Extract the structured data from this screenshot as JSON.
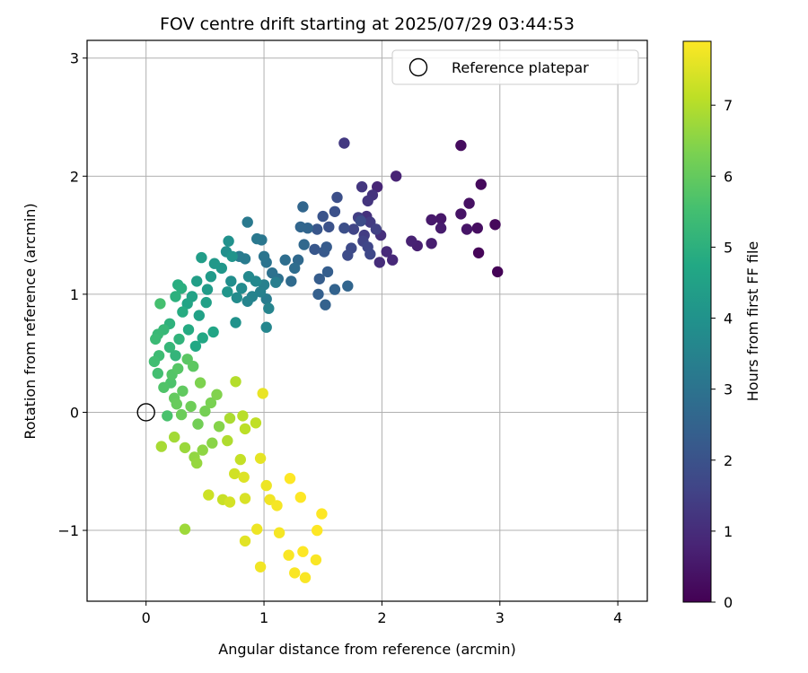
{
  "chart_data": {
    "type": "scatter",
    "title": "FOV centre drift starting at 2025/07/29 03:44:53",
    "xlabel": "Angular distance from reference (arcmin)",
    "ylabel": "Rotation from reference (arcmin)",
    "xlim": [
      -0.5,
      4.25
    ],
    "ylim": [
      -1.6,
      3.15
    ],
    "xticks": [
      0,
      1,
      2,
      3,
      4
    ],
    "xtick_labels": [
      "0",
      "1",
      "2",
      "3",
      "4"
    ],
    "yticks": [
      -1,
      0,
      1,
      2,
      3
    ],
    "ytick_labels": [
      "−1",
      "0",
      "1",
      "2",
      "3"
    ],
    "grid": true,
    "legend": {
      "placement": "top-right",
      "entries": [
        "Reference platepar"
      ]
    },
    "reference_point": {
      "x": 0,
      "y": 0
    },
    "colorbar": {
      "label": "Hours from first FF file",
      "colormap": "viridis",
      "range": [
        0,
        7.9
      ],
      "ticks": [
        0,
        1,
        2,
        3,
        4,
        5,
        6,
        7
      ],
      "tick_labels": [
        "0",
        "1",
        "2",
        "3",
        "4",
        "5",
        "6",
        "7"
      ]
    },
    "series": [
      {
        "color_by": "hours",
        "points": [
          [
            2.98,
            1.19,
            0.05
          ],
          [
            2.82,
            1.35,
            0.1
          ],
          [
            2.96,
            1.59,
            0.15
          ],
          [
            2.84,
            1.93,
            0.2
          ],
          [
            2.67,
            2.26,
            0.25
          ],
          [
            2.81,
            1.56,
            0.3
          ],
          [
            2.74,
            1.77,
            0.35
          ],
          [
            2.67,
            1.68,
            0.4
          ],
          [
            2.72,
            1.55,
            0.45
          ],
          [
            2.5,
            1.64,
            0.5
          ],
          [
            2.42,
            1.63,
            0.55
          ],
          [
            2.5,
            1.56,
            0.6
          ],
          [
            2.42,
            1.43,
            0.65
          ],
          [
            2.3,
            1.41,
            0.7
          ],
          [
            2.25,
            1.45,
            0.75
          ],
          [
            2.12,
            2.0,
            0.8
          ],
          [
            1.96,
            1.91,
            0.85
          ],
          [
            2.09,
            1.29,
            0.9
          ],
          [
            2.04,
            1.36,
            0.95
          ],
          [
            1.98,
            1.27,
            1.0
          ],
          [
            1.99,
            1.5,
            1.05
          ],
          [
            1.87,
            1.66,
            1.1
          ],
          [
            1.92,
            1.84,
            1.15
          ],
          [
            1.88,
            1.79,
            1.2
          ],
          [
            1.83,
            1.91,
            1.25
          ],
          [
            1.68,
            2.28,
            1.3
          ],
          [
            1.9,
            1.61,
            1.35
          ],
          [
            1.85,
            1.5,
            1.4
          ],
          [
            1.8,
            1.65,
            1.45
          ],
          [
            1.95,
            1.55,
            1.5
          ],
          [
            1.84,
            1.45,
            1.55
          ],
          [
            1.76,
            1.55,
            1.6
          ],
          [
            1.88,
            1.4,
            1.65
          ],
          [
            1.9,
            1.34,
            1.7
          ],
          [
            1.74,
            1.39,
            1.75
          ],
          [
            1.71,
            1.33,
            1.8
          ],
          [
            1.82,
            1.62,
            1.85
          ],
          [
            1.68,
            1.56,
            1.9
          ],
          [
            1.6,
            1.7,
            1.95
          ],
          [
            1.62,
            1.82,
            1.9
          ],
          [
            1.55,
            1.57,
            2.0
          ],
          [
            1.5,
            1.66,
            2.05
          ],
          [
            1.45,
            1.55,
            2.1
          ],
          [
            1.43,
            1.38,
            2.15
          ],
          [
            1.51,
            1.36,
            2.2
          ],
          [
            1.53,
            1.4,
            2.25
          ],
          [
            1.47,
            1.13,
            2.3
          ],
          [
            1.54,
            1.19,
            2.35
          ],
          [
            1.46,
            1.0,
            2.4
          ],
          [
            1.52,
            0.91,
            2.45
          ],
          [
            1.6,
            1.04,
            2.5
          ],
          [
            1.71,
            1.07,
            2.55
          ],
          [
            1.37,
            1.56,
            2.55
          ],
          [
            1.31,
            1.57,
            2.6
          ],
          [
            1.33,
            1.74,
            2.6
          ],
          [
            1.34,
            1.42,
            2.65
          ],
          [
            1.29,
            1.29,
            2.7
          ],
          [
            1.23,
            1.11,
            2.75
          ],
          [
            1.26,
            1.22,
            2.8
          ],
          [
            1.18,
            1.29,
            2.85
          ],
          [
            1.12,
            1.13,
            2.9
          ],
          [
            1.07,
            1.18,
            2.95
          ],
          [
            1.02,
            1.27,
            3.0
          ],
          [
            1.0,
            1.32,
            3.05
          ],
          [
            0.98,
            1.46,
            3.1
          ],
          [
            0.94,
            1.47,
            3.15
          ],
          [
            0.86,
            1.61,
            3.2
          ],
          [
            0.84,
            1.3,
            3.25
          ],
          [
            0.79,
            1.32,
            3.25
          ],
          [
            1.02,
            0.96,
            3.3
          ],
          [
            1.1,
            1.1,
            3.35
          ],
          [
            1.0,
            1.08,
            3.4
          ],
          [
            0.97,
            1.02,
            3.45
          ],
          [
            0.9,
            0.98,
            3.5
          ],
          [
            0.86,
            0.94,
            3.55
          ],
          [
            1.04,
            0.88,
            3.55
          ],
          [
            1.02,
            0.72,
            3.6
          ],
          [
            0.93,
            1.11,
            3.65
          ],
          [
            0.87,
            1.15,
            3.7
          ],
          [
            0.81,
            1.05,
            3.75
          ],
          [
            0.77,
            0.97,
            3.8
          ],
          [
            0.72,
            1.11,
            3.85
          ],
          [
            0.68,
            1.36,
            3.9
          ],
          [
            0.7,
            1.45,
            3.95
          ],
          [
            0.76,
            0.76,
            4.0
          ],
          [
            0.73,
            1.32,
            4.05
          ],
          [
            0.69,
            1.02,
            4.1
          ],
          [
            0.64,
            1.22,
            4.15
          ],
          [
            0.58,
            1.26,
            4.2
          ],
          [
            0.55,
            1.15,
            4.25
          ],
          [
            0.52,
            1.04,
            4.3
          ],
          [
            0.47,
            1.31,
            4.35
          ],
          [
            0.43,
            1.11,
            4.4
          ],
          [
            0.51,
            0.93,
            4.45
          ],
          [
            0.45,
            0.82,
            4.5
          ],
          [
            0.39,
            0.98,
            4.55
          ],
          [
            0.35,
            0.92,
            4.6
          ],
          [
            0.57,
            0.68,
            4.65
          ],
          [
            0.48,
            0.63,
            4.7
          ],
          [
            0.42,
            0.56,
            4.75
          ],
          [
            0.36,
            0.7,
            4.8
          ],
          [
            0.31,
            0.85,
            4.85
          ],
          [
            0.27,
            1.08,
            4.9
          ],
          [
            0.3,
            1.05,
            4.95
          ],
          [
            0.25,
            0.98,
            5.0
          ],
          [
            0.2,
            0.75,
            5.05
          ],
          [
            0.28,
            0.62,
            5.1
          ],
          [
            0.25,
            0.48,
            5.15
          ],
          [
            0.2,
            0.55,
            5.2
          ],
          [
            0.15,
            0.7,
            5.25
          ],
          [
            0.1,
            0.66,
            5.3
          ],
          [
            0.08,
            0.62,
            5.35
          ],
          [
            0.11,
            0.48,
            5.4
          ],
          [
            0.07,
            0.43,
            5.45
          ],
          [
            0.1,
            0.33,
            5.5
          ],
          [
            0.12,
            0.92,
            5.55
          ],
          [
            0.18,
            -0.03,
            5.6
          ],
          [
            0.21,
            0.25,
            5.65
          ],
          [
            0.15,
            0.21,
            5.7
          ],
          [
            0.22,
            0.32,
            5.75
          ],
          [
            0.27,
            0.37,
            5.8
          ],
          [
            0.35,
            0.45,
            5.85
          ],
          [
            0.4,
            0.39,
            5.9
          ],
          [
            0.31,
            0.18,
            5.95
          ],
          [
            0.24,
            0.12,
            6.0
          ],
          [
            0.26,
            0.07,
            6.05
          ],
          [
            0.3,
            -0.02,
            6.1
          ],
          [
            0.38,
            0.05,
            6.15
          ],
          [
            0.44,
            -0.1,
            6.2
          ],
          [
            0.5,
            0.01,
            6.25
          ],
          [
            0.55,
            0.08,
            6.3
          ],
          [
            0.46,
            0.25,
            6.35
          ],
          [
            0.6,
            0.15,
            6.4
          ],
          [
            0.62,
            -0.12,
            6.45
          ],
          [
            0.56,
            -0.26,
            6.5
          ],
          [
            0.48,
            -0.32,
            6.55
          ],
          [
            0.41,
            -0.38,
            6.6
          ],
          [
            0.43,
            -0.43,
            6.65
          ],
          [
            0.33,
            -0.3,
            6.7
          ],
          [
            0.33,
            -0.99,
            6.75
          ],
          [
            0.24,
            -0.21,
            6.8
          ],
          [
            0.13,
            -0.29,
            6.85
          ],
          [
            0.71,
            -0.05,
            6.9
          ],
          [
            0.69,
            -0.24,
            6.95
          ],
          [
            0.76,
            0.26,
            7.0
          ],
          [
            0.82,
            -0.03,
            7.05
          ],
          [
            0.84,
            -0.14,
            7.1
          ],
          [
            0.93,
            -0.09,
            7.15
          ],
          [
            0.8,
            -0.4,
            7.2
          ],
          [
            0.65,
            -0.74,
            7.25
          ],
          [
            0.53,
            -0.7,
            7.3
          ],
          [
            0.75,
            -0.52,
            7.35
          ],
          [
            0.71,
            -0.76,
            7.4
          ],
          [
            0.84,
            -0.73,
            7.45
          ],
          [
            0.83,
            -0.55,
            7.5
          ],
          [
            0.84,
            -1.09,
            7.55
          ],
          [
            0.97,
            -0.39,
            7.6
          ],
          [
            0.99,
            0.16,
            7.65
          ],
          [
            0.94,
            -0.99,
            7.7
          ],
          [
            1.02,
            -0.62,
            7.7
          ],
          [
            1.05,
            -0.74,
            7.75
          ],
          [
            0.97,
            -1.31,
            7.75
          ],
          [
            1.11,
            -0.79,
            7.8
          ],
          [
            1.13,
            -1.02,
            7.8
          ],
          [
            1.21,
            -1.21,
            7.85
          ],
          [
            1.26,
            -1.36,
            7.85
          ],
          [
            1.33,
            -1.18,
            7.9
          ],
          [
            1.22,
            -0.56,
            7.9
          ],
          [
            1.31,
            -0.72,
            7.9
          ],
          [
            1.45,
            -1.0,
            7.9
          ],
          [
            1.49,
            -0.86,
            7.9
          ],
          [
            1.44,
            -1.25,
            7.85
          ],
          [
            1.35,
            -1.4,
            7.85
          ]
        ]
      }
    ]
  }
}
